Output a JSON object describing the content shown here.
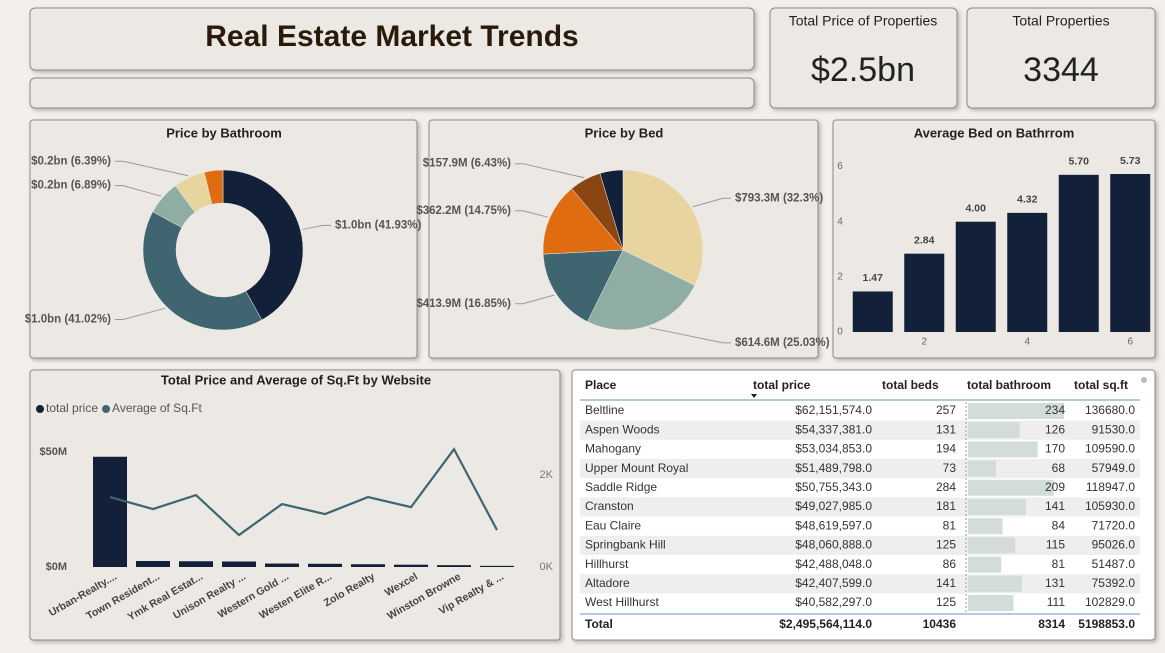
{
  "header": {
    "title": "Real Estate Market Trends"
  },
  "cards": [
    {
      "label": "Total Price of Properties",
      "value": "$2.5bn"
    },
    {
      "label": "Total Properties",
      "value": 3344
    }
  ],
  "chart_data": [
    {
      "type": "donut",
      "title": "Price by Bathroom",
      "values": [
        41.93,
        41.02,
        6.89,
        6.39,
        3.77
      ],
      "value_labels": [
        "$1.0bn (41.93%)",
        "$1.0bn (41.02%)",
        "$0.2bn (6.89%)",
        "$0.2bn (6.39%)",
        null
      ],
      "colors": [
        "#12203a",
        "#3f6670",
        "#8fada3",
        "#e8d49e",
        "#e06c12"
      ]
    },
    {
      "type": "pie",
      "title": "Price by Bed",
      "values": [
        32.3,
        25.03,
        16.85,
        14.75,
        6.43,
        4.64
      ],
      "value_labels": [
        "$793.3M (32.3%)",
        "$614.6M (25.03%)",
        "$413.9M (16.85%)",
        "$362.2M (14.75%)",
        "$157.9M (6.43%)",
        null
      ],
      "colors": [
        "#e8d49e",
        "#8fada3",
        "#3f6670",
        "#e06c12",
        "#8b4513",
        "#12203a"
      ]
    },
    {
      "type": "bar",
      "title": "Average Bed on Bathrrom",
      "x": [
        1,
        2,
        3,
        4,
        5,
        6
      ],
      "values": [
        1.47,
        2.84,
        4.0,
        4.32,
        5.7,
        5.73
      ],
      "value_labels": [
        "1.47",
        "2.84",
        "4.00",
        "4.32",
        "5.70",
        "5.73"
      ],
      "color": "#12203a",
      "xlim": [
        0.5,
        6.5
      ],
      "xticks": [
        2,
        4,
        6
      ],
      "ylim": [
        0,
        6.6
      ],
      "yticks": [
        0,
        2,
        4,
        6
      ]
    },
    {
      "type": "combo",
      "title": "Total Price and Average of Sq.Ft by Website",
      "categories": [
        "Urban-Realty....",
        "Town Resident...",
        "Ymk Real Estat...",
        "Unison Realty ...",
        "Western Gold ...",
        "Westen Elite R...",
        "Zolo Realty",
        "Wexcel",
        "Winston Browne",
        "Vip Realty & ..."
      ],
      "series": [
        {
          "name": "total price",
          "type": "bar",
          "color": "#12203a",
          "values": [
            48000000,
            2600000,
            2500000,
            2400000,
            1500000,
            1400000,
            1200000,
            1000000,
            800000,
            500000
          ]
        },
        {
          "name": "Average of Sq.Ft",
          "type": "line",
          "axis": "y2",
          "color": "#3f6670",
          "values": [
            1522,
            1261,
            1565,
            696,
            1370,
            1152,
            1522,
            1304,
            2565,
            804
          ]
        }
      ],
      "ylim": [
        0,
        64000000
      ],
      "yticks": [
        {
          "value": 0,
          "label": "$0M"
        },
        {
          "value": 50000000,
          "label": "$50M"
        }
      ],
      "y2lim": [
        0,
        3200
      ],
      "y2ticks": [
        {
          "value": 0,
          "label": "0K"
        },
        {
          "value": 2000,
          "label": "2K"
        }
      ]
    }
  ],
  "table": {
    "columns": [
      "Place",
      "total price",
      "total beds",
      "total bathroom",
      "total sq.ft"
    ],
    "rows": [
      [
        "Beltline",
        "$62,151,574.0",
        257,
        234,
        "136680.0"
      ],
      [
        "Aspen Woods",
        "$54,337,381.0",
        131,
        126,
        "91530.0"
      ],
      [
        "Mahogany",
        "$53,034,853.0",
        194,
        170,
        "109590.0"
      ],
      [
        "Upper Mount Royal",
        "$51,489,798.0",
        73,
        68,
        "57949.0"
      ],
      [
        "Saddle Ridge",
        "$50,755,343.0",
        284,
        209,
        "118947.0"
      ],
      [
        "Cranston",
        "$49,027,985.0",
        181,
        141,
        "105930.0"
      ],
      [
        "Eau Claire",
        "$48,619,597.0",
        81,
        84,
        "71720.0"
      ],
      [
        "Springbank Hill",
        "$48,060,888.0",
        125,
        115,
        "95026.0"
      ],
      [
        "Hillhurst",
        "$42,488,048.0",
        86,
        81,
        "51487.0"
      ],
      [
        "Altadore",
        "$42,407,599.0",
        141,
        131,
        "75392.0"
      ],
      [
        "West Hillhurst",
        "$40,582,297.0",
        125,
        111,
        "102829.0"
      ]
    ],
    "total": [
      "Total",
      "$2,495,564,114.0",
      10436,
      8314,
      "5198853.0"
    ]
  }
}
